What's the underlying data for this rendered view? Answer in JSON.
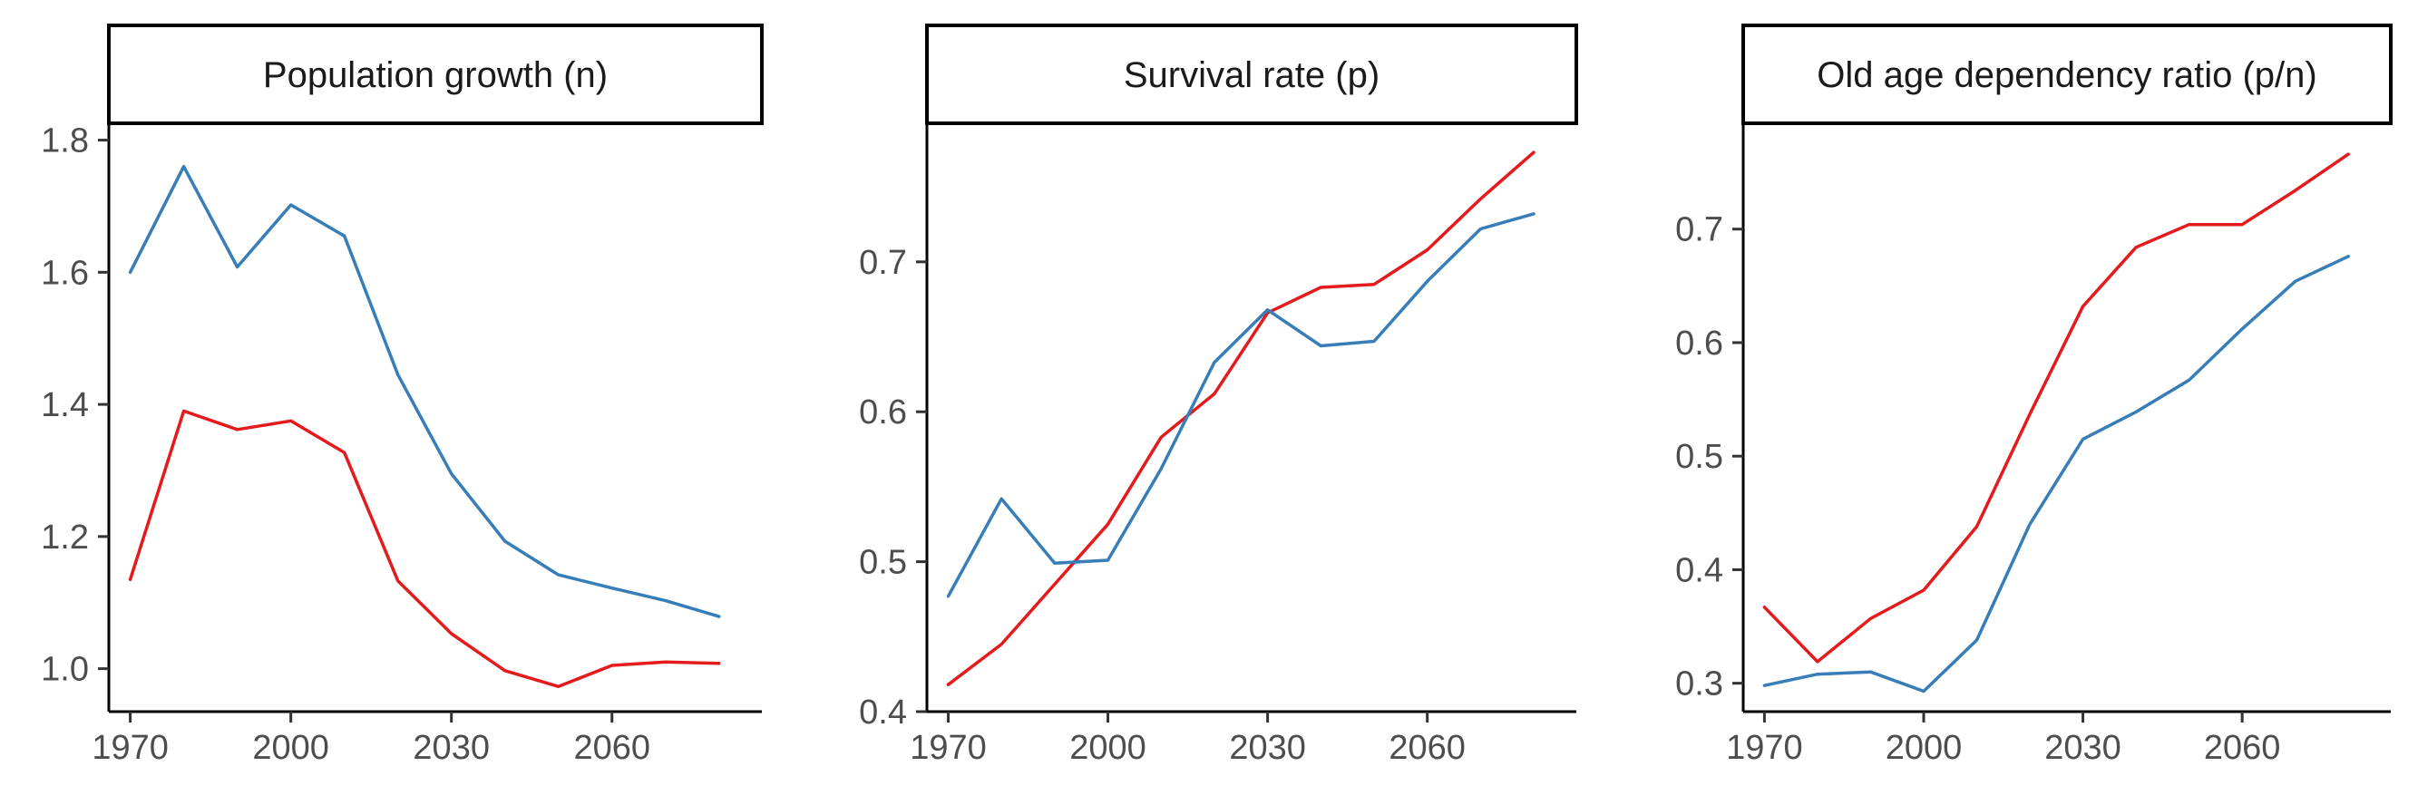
{
  "chart_data": [
    {
      "type": "line",
      "title": "Population growth (n)",
      "xlabel": "",
      "ylabel": "",
      "x": [
        1970,
        1980,
        1990,
        2000,
        2010,
        2020,
        2030,
        2040,
        2050,
        2060,
        2070,
        2080
      ],
      "xticks": [
        1970,
        2000,
        2030,
        2060
      ],
      "xlim": [
        1966,
        2088
      ],
      "yticks": [
        1.0,
        1.2,
        1.4,
        1.6,
        1.8
      ],
      "ylim": [
        0.935,
        1.82
      ],
      "grid": false,
      "series": [
        {
          "color": "#e41a1c",
          "values": [
            1.135,
            1.39,
            1.362,
            1.375,
            1.327,
            1.133,
            1.053,
            0.997,
            0.973,
            1.005,
            1.01,
            1.008
          ]
        },
        {
          "color": "#377eb8",
          "values": [
            1.6,
            1.76,
            1.608,
            1.702,
            1.655,
            1.445,
            1.295,
            1.193,
            1.142,
            1.122,
            1.103,
            1.079
          ]
        }
      ]
    },
    {
      "type": "line",
      "title": "Survival rate (p)",
      "xlabel": "",
      "ylabel": "",
      "x": [
        1970,
        1980,
        1990,
        2000,
        2010,
        2020,
        2030,
        2040,
        2050,
        2060,
        2070,
        2080
      ],
      "xticks": [
        1970,
        2000,
        2030,
        2060
      ],
      "xlim": [
        1966,
        2088
      ],
      "yticks": [
        0.4,
        0.5,
        0.6,
        0.7
      ],
      "ylim": [
        0.4,
        0.79
      ],
      "grid": false,
      "series": [
        {
          "color": "#e41a1c",
          "values": [
            0.418,
            0.445,
            0.485,
            0.525,
            0.583,
            0.612,
            0.666,
            0.683,
            0.685,
            0.708,
            0.742,
            0.773
          ]
        },
        {
          "color": "#377eb8",
          "values": [
            0.477,
            0.542,
            0.499,
            0.501,
            0.562,
            0.633,
            0.668,
            0.644,
            0.647,
            0.687,
            0.722,
            0.732
          ]
        }
      ]
    },
    {
      "type": "line",
      "title": "Old age dependency ratio (p/n)",
      "xlabel": "",
      "ylabel": "",
      "x": [
        1970,
        1980,
        1990,
        2000,
        2010,
        2020,
        2030,
        2040,
        2050,
        2060,
        2070,
        2080
      ],
      "xticks": [
        1970,
        2000,
        2030,
        2060
      ],
      "xlim": [
        1966,
        2088
      ],
      "yticks": [
        0.3,
        0.4,
        0.5,
        0.6,
        0.7
      ],
      "ylim": [
        0.275,
        0.79
      ],
      "grid": false,
      "series": [
        {
          "color": "#e41a1c",
          "values": [
            0.367,
            0.319,
            0.357,
            0.382,
            0.438,
            0.537,
            0.632,
            0.684,
            0.704,
            0.704,
            0.734,
            0.766
          ]
        },
        {
          "color": "#377eb8",
          "values": [
            0.298,
            0.308,
            0.31,
            0.293,
            0.338,
            0.44,
            0.515,
            0.539,
            0.567,
            0.612,
            0.654,
            0.676
          ]
        }
      ]
    }
  ]
}
